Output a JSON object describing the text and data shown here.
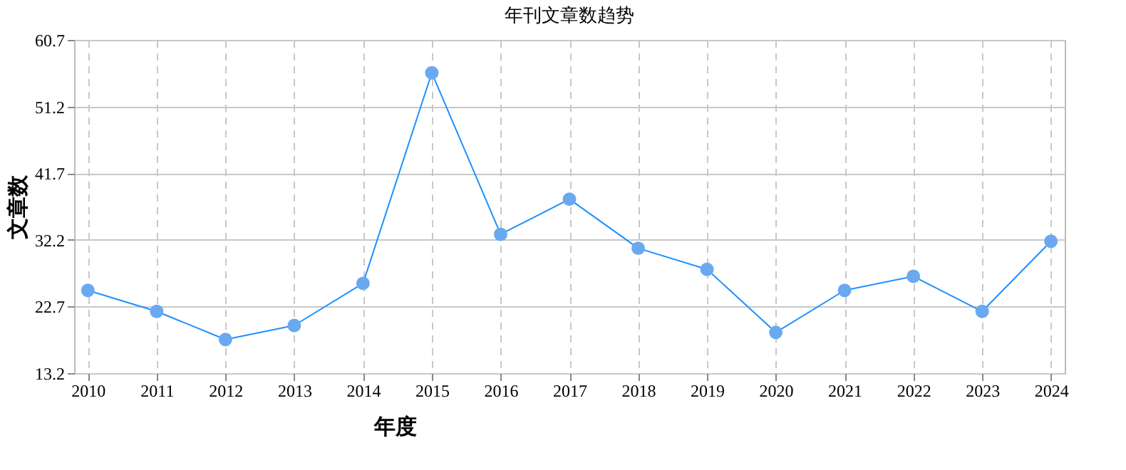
{
  "chart_data": {
    "type": "line",
    "title": "年刊文章数趋势",
    "xlabel": "年度",
    "ylabel": "文章数",
    "categories": [
      "2010",
      "2011",
      "2012",
      "2013",
      "2014",
      "2015",
      "2016",
      "2017",
      "2018",
      "2019",
      "2020",
      "2021",
      "2022",
      "2023",
      "2024"
    ],
    "series": [
      {
        "color": "#1e90ff",
        "values": [
          25,
          22,
          18,
          20,
          26,
          56,
          33,
          38,
          31,
          28,
          19,
          25,
          27,
          22,
          32
        ]
      }
    ],
    "ylim": [
      13.2,
      60.7
    ],
    "yticks": [
      13.2,
      22.7,
      32.2,
      41.7,
      51.2,
      60.7
    ],
    "grid": true,
    "marker": "circle",
    "line_style": "solid",
    "legend": false
  }
}
